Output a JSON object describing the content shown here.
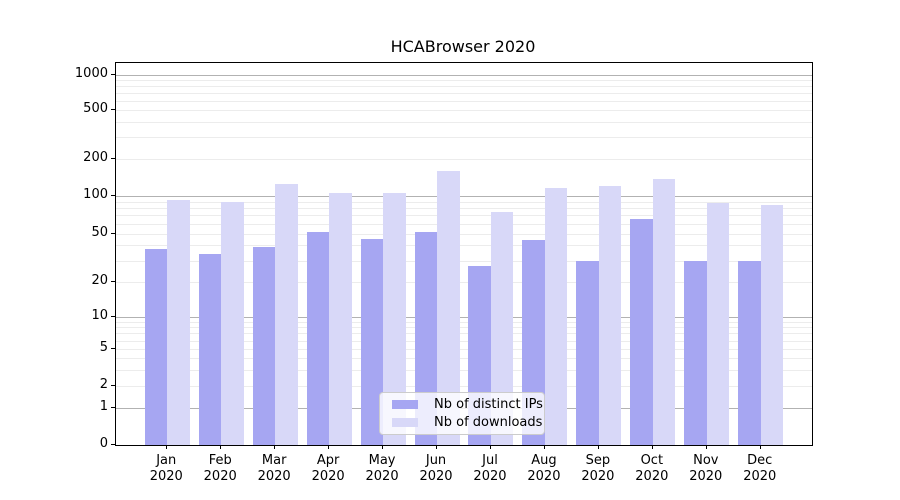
{
  "chart_data": {
    "type": "bar",
    "title": "HCABrowser 2020",
    "xlabel": "",
    "ylabel": "",
    "yscale": "symlog",
    "grid": true,
    "legend_position": "lower center",
    "year": "2020",
    "months": [
      "Jan",
      "Feb",
      "Mar",
      "Apr",
      "May",
      "Jun",
      "Jul",
      "Aug",
      "Sep",
      "Oct",
      "Nov",
      "Dec"
    ],
    "categories": [
      "Jan 2020",
      "Feb 2020",
      "Mar 2020",
      "Apr 2020",
      "May 2020",
      "Jun 2020",
      "Jul 2020",
      "Aug 2020",
      "Sep 2020",
      "Oct 2020",
      "Nov 2020",
      "Dec 2020"
    ],
    "y_tick_values": [
      0,
      1,
      2,
      5,
      10,
      20,
      50,
      100,
      200,
      500,
      1000
    ],
    "y_tick_labels": [
      "0",
      "1",
      "2",
      "5",
      "10",
      "20",
      "50",
      "100",
      "200",
      "500",
      "1000"
    ],
    "ylim": [
      0,
      1260
    ],
    "series": [
      {
        "name": "Nb of distinct IPs",
        "color": "#a6a6f2",
        "values": [
          37,
          34,
          39,
          51,
          45,
          51,
          27,
          44,
          30,
          65,
          30,
          30
        ]
      },
      {
        "name": "Nb of downloads",
        "color": "#d8d8f8",
        "values": [
          93,
          90,
          125,
          106,
          105,
          160,
          74,
          117,
          121,
          137,
          88,
          85
        ]
      }
    ]
  }
}
